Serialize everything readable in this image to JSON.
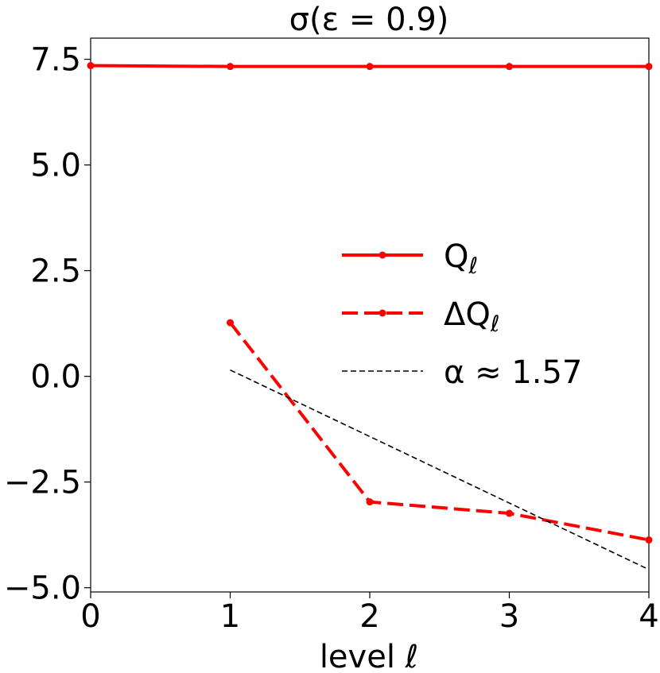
{
  "chart_data": {
    "type": "line",
    "title": "σ(ε = 0.9)",
    "xlabel": "level ℓ",
    "ylabel": "",
    "xlim": [
      0,
      4
    ],
    "ylim": [
      -5.1,
      8.0
    ],
    "x_ticks": [
      0,
      1,
      2,
      3,
      4
    ],
    "x_tick_labels": [
      "0",
      "1",
      "2",
      "3",
      "4"
    ],
    "y_ticks": [
      7.5,
      5.0,
      2.5,
      0.0,
      -2.5,
      -5.0
    ],
    "y_tick_labels": [
      "7.5",
      "5.0",
      "2.5",
      "0.0",
      "−2.5",
      "−5.0"
    ],
    "grid": false,
    "legend_position": "center-right",
    "series": [
      {
        "name": "Q_ℓ",
        "legend_main": "Q",
        "legend_sub": "ℓ",
        "color": "#ff0000",
        "style": "solid",
        "markers": true,
        "x": [
          0,
          1,
          2,
          3,
          4
        ],
        "y": [
          7.35,
          7.33,
          7.33,
          7.33,
          7.33
        ]
      },
      {
        "name": "ΔQ_ℓ",
        "legend_main": "ΔQ",
        "legend_sub": "ℓ",
        "color": "#ff0000",
        "style": "dashed",
        "markers": true,
        "x": [
          1,
          2,
          3,
          4
        ],
        "y": [
          1.27,
          -2.97,
          -3.24,
          -3.87
        ]
      },
      {
        "name": "α ≈ 1.57",
        "legend_main": "α ≈ 1.57",
        "legend_sub": "",
        "color": "#000000",
        "style": "thin-dashed",
        "markers": false,
        "x": [
          1,
          4
        ],
        "y": [
          0.15,
          -4.57
        ]
      }
    ]
  }
}
